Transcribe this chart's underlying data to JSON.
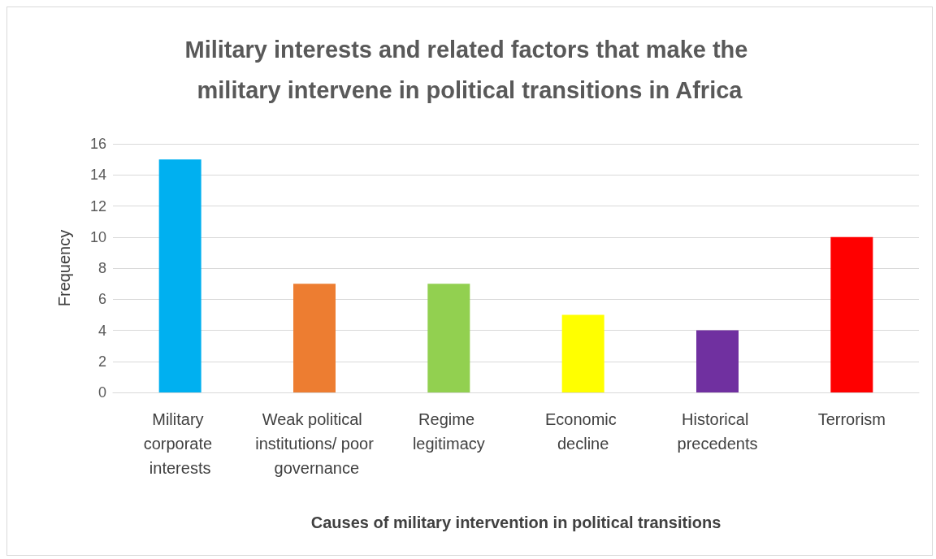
{
  "chart_data": {
    "type": "bar",
    "title": "Military interests and related factors that make the military intervene in political transitions in Africa",
    "xlabel": "Causes of military intervention in political transitions",
    "ylabel": "Frequency",
    "categories": [
      "Military corporate interests",
      "Weak political institutions/ poor governance",
      "Regime legitimacy",
      "Economic decline",
      "Historical precedents",
      "Terrorism"
    ],
    "values": [
      15,
      7,
      7,
      5,
      4,
      10
    ],
    "colors": [
      "#00b0f0",
      "#ed7d31",
      "#92d050",
      "#ffff00",
      "#7030a0",
      "#ff0000"
    ],
    "ylim": [
      0,
      16
    ],
    "yticks": [
      0,
      2,
      4,
      6,
      8,
      10,
      12,
      14,
      16
    ],
    "grid": "y"
  }
}
